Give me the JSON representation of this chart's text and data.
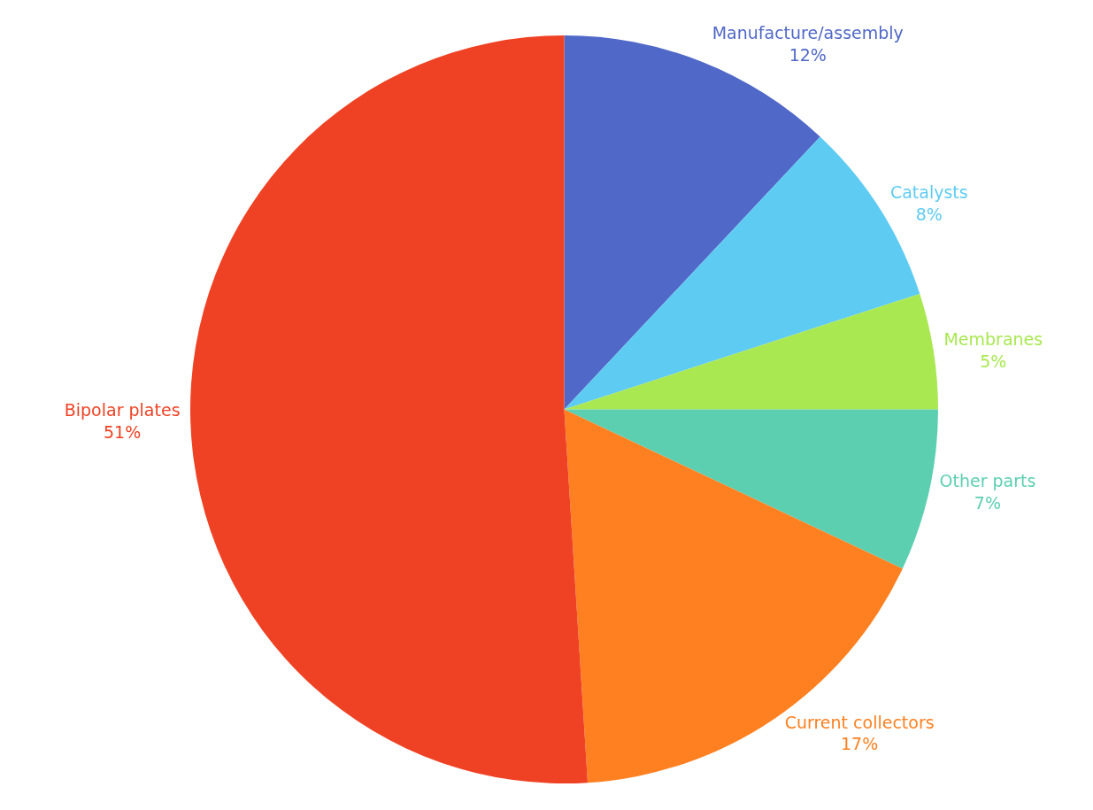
{
  "chart_data": {
    "type": "pie",
    "categories": [
      "Manufacture/assembly",
      "Catalysts",
      "Membranes",
      "Other parts",
      "Current collectors",
      "Bipolar plates"
    ],
    "values": [
      12,
      8,
      5,
      7,
      17,
      51
    ],
    "value_labels": [
      "12%",
      "8%",
      "5%",
      "7%",
      "17%",
      "51%"
    ],
    "colors": [
      "#5068c8",
      "#5ecbf2",
      "#a9e851",
      "#5ccfb1",
      "#fe8020",
      "#ef4224"
    ],
    "legend": false
  }
}
